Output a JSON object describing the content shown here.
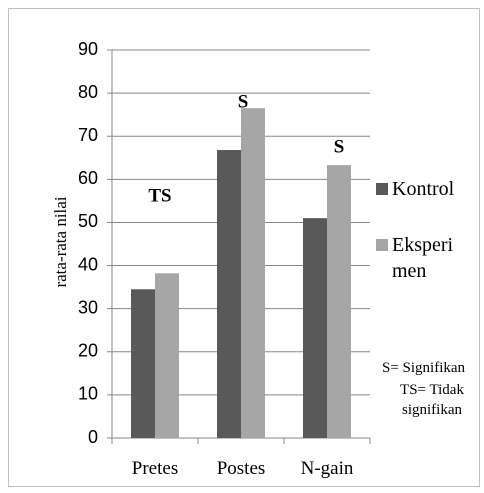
{
  "chart_data": {
    "type": "bar",
    "y_label": "rata-rata nilai",
    "categories": [
      "Pretes",
      "Postes",
      "N-gain"
    ],
    "series": [
      {
        "name": "Kontrol",
        "color": "#595959",
        "values": [
          34.5,
          66.8,
          51
        ]
      },
      {
        "name": "Eksperimen",
        "color": "#a6a6a6",
        "values": [
          38.2,
          76.5,
          63.3
        ]
      }
    ],
    "ylim": [
      0,
      90
    ],
    "yticks": [
      0,
      10,
      20,
      30,
      40,
      50,
      60,
      70,
      80,
      90
    ],
    "grid": true,
    "annotations": [
      "TS",
      "S",
      "S"
    ],
    "notes": [
      "S= Signifikan",
      "TS= Tidak signifikan"
    ]
  }
}
